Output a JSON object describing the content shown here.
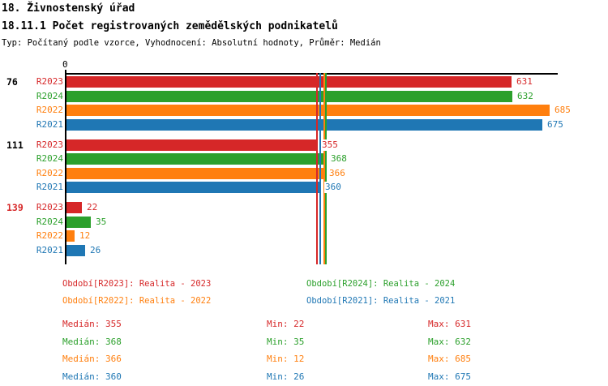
{
  "header": {
    "title": "18. Živnostenský úřad",
    "subtitle": "18.11.1 Počet registrovaných zemědělských podnikatelů",
    "meta": "Typ: Počítaný podle vzorce, Vyhodnocení: Absolutní hodnoty, Průměr: Medián"
  },
  "colors": {
    "R2023": "#d62728",
    "R2024": "#2ca02c",
    "R2022": "#ff7f0e",
    "R2021": "#1f77b4",
    "axis": "#000000",
    "alert_group_label": "#d62728"
  },
  "chart_data": {
    "type": "bar",
    "orientation": "horizontal",
    "title": "18.11.1 Počet registrovaných zemědělských podnikatelů",
    "axis_zero_label": "0",
    "xlim": [
      0,
      700
    ],
    "grid": false,
    "series_order": [
      "R2023",
      "R2024",
      "R2022",
      "R2021"
    ],
    "series_colors": {
      "R2023": "#d62728",
      "R2024": "#2ca02c",
      "R2022": "#ff7f0e",
      "R2021": "#1f77b4"
    },
    "groups": [
      {
        "label": "76",
        "label_color": "#000000",
        "values": {
          "R2023": 631,
          "R2024": 632,
          "R2022": 685,
          "R2021": 675
        }
      },
      {
        "label": "111",
        "label_color": "#000000",
        "values": {
          "R2023": 355,
          "R2024": 368,
          "R2022": 366,
          "R2021": 360
        }
      },
      {
        "label": "139",
        "label_color": "#d62728",
        "values": {
          "R2023": 22,
          "R2024": 35,
          "R2022": 12,
          "R2021": 26
        }
      }
    ],
    "median_lines": {
      "R2023": 355,
      "R2024": 368,
      "R2022": 366,
      "R2021": 360
    }
  },
  "legend": {
    "items": [
      {
        "text": "Období[R2023]: Realita - 2023",
        "color": "#d62728"
      },
      {
        "text": "Období[R2024]: Realita - 2024",
        "color": "#2ca02c"
      },
      {
        "text": "Období[R2022]: Realita - 2022",
        "color": "#ff7f0e"
      },
      {
        "text": "Období[R2021]: Realita - 2021",
        "color": "#1f77b4"
      }
    ]
  },
  "stats": {
    "rows": [
      {
        "color": "#d62728",
        "median": "Medián: 355",
        "min": "Min: 22",
        "max": "Max: 631"
      },
      {
        "color": "#2ca02c",
        "median": "Medián: 368",
        "min": "Min: 35",
        "max": "Max: 632"
      },
      {
        "color": "#ff7f0e",
        "median": "Medián: 366",
        "min": "Min: 12",
        "max": "Max: 685"
      },
      {
        "color": "#1f77b4",
        "median": "Medián: 360",
        "min": "Min: 26",
        "max": "Max: 675"
      }
    ]
  }
}
